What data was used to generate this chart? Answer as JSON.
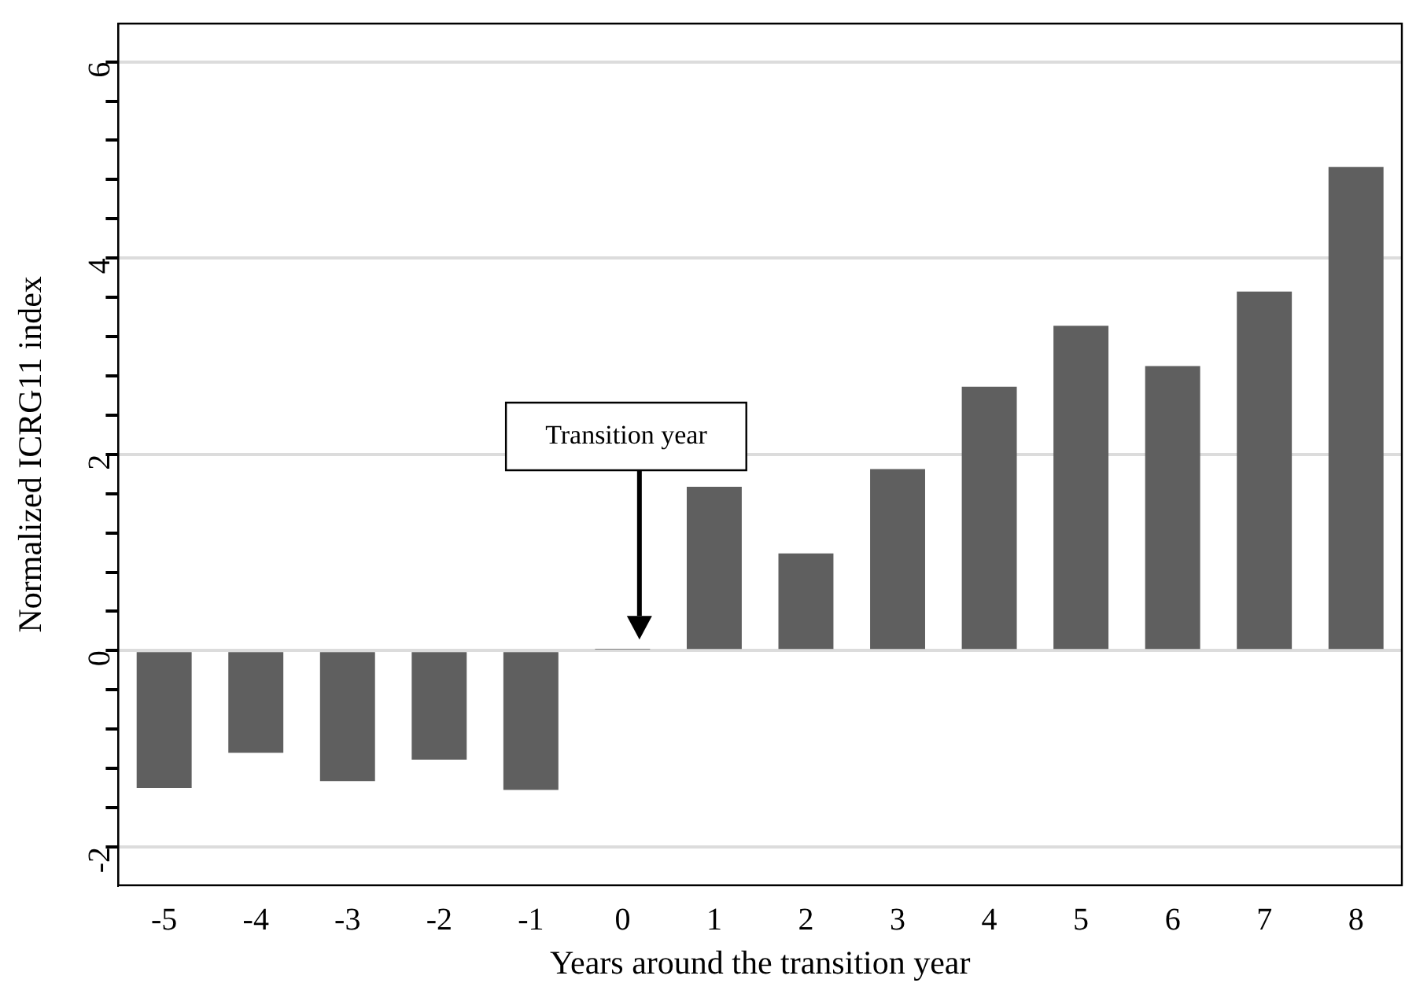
{
  "chart_data": {
    "type": "bar",
    "xlabel": "Years around the transition year",
    "ylabel": "Normalized ICRG11 index",
    "categories": [
      "-5",
      "-4",
      "-3",
      "-2",
      "-1",
      "0",
      "1",
      "2",
      "3",
      "4",
      "5",
      "6",
      "7",
      "8"
    ],
    "values": [
      -1.4,
      -1.04,
      -1.33,
      -1.11,
      -1.42,
      0.01,
      1.67,
      0.99,
      1.85,
      2.69,
      3.31,
      2.9,
      3.66,
      4.93
    ],
    "color": "#5f5f5f",
    "ylim": [
      -2.39,
      6.39
    ],
    "yticks": [
      -2,
      {
        "value": -1.6,
        "label": null
      },
      {
        "value": -1.2,
        "label": null
      },
      {
        "value": -0.8,
        "label": null
      },
      {
        "value": -0.4,
        "label": null
      },
      0,
      {
        "value": 0.4,
        "label": null
      },
      {
        "value": 0.8,
        "label": null
      },
      {
        "value": 1.2,
        "label": null
      },
      {
        "value": 1.6,
        "label": null
      },
      2,
      {
        "value": 2.4,
        "label": null
      },
      {
        "value": 2.8,
        "label": null
      },
      {
        "value": 3.2,
        "label": null
      },
      {
        "value": 3.6,
        "label": null
      },
      4,
      {
        "value": 4.4,
        "label": null
      },
      {
        "value": 4.8,
        "label": null
      },
      {
        "value": 5.2,
        "label": null
      },
      {
        "value": 5.6,
        "label": null
      },
      6
    ],
    "grid": "y",
    "legend": false,
    "annotations": [
      "Transition year"
    ]
  }
}
